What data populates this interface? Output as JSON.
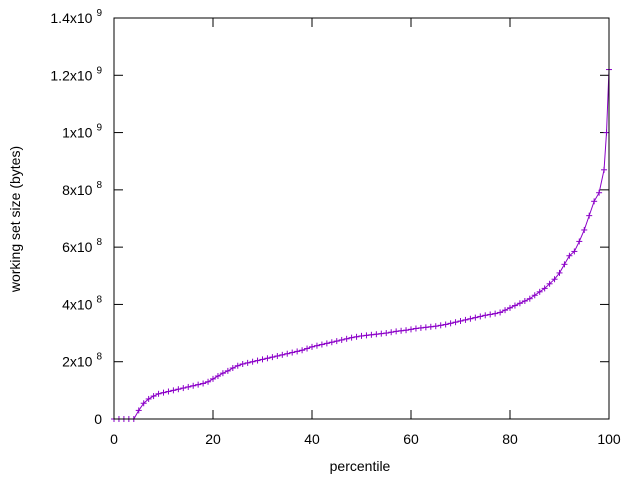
{
  "chart_data": {
    "type": "line",
    "title": "",
    "xlabel": "percentile",
    "ylabel": "working set size (bytes)",
    "xlim": [
      0,
      100
    ],
    "ylim": [
      0,
      1400000000
    ],
    "x_ticks": [
      {
        "value": 0,
        "label": "0"
      },
      {
        "value": 20,
        "label": "20"
      },
      {
        "value": 40,
        "label": "40"
      },
      {
        "value": 60,
        "label": "60"
      },
      {
        "value": 80,
        "label": "80"
      },
      {
        "value": 100,
        "label": "100"
      }
    ],
    "y_ticks": [
      {
        "value": 0,
        "base": "0",
        "exp": ""
      },
      {
        "value": 200000000,
        "base": "2x10",
        "exp": "8"
      },
      {
        "value": 400000000,
        "base": "4x10",
        "exp": "8"
      },
      {
        "value": 600000000,
        "base": "6x10",
        "exp": "8"
      },
      {
        "value": 800000000,
        "base": "8x10",
        "exp": "8"
      },
      {
        "value": 1000000000,
        "base": "1x10",
        "exp": "9"
      },
      {
        "value": 1200000000,
        "base": "1.2x10",
        "exp": "9"
      },
      {
        "value": 1400000000,
        "base": "1.4x10",
        "exp": "9"
      }
    ],
    "grid": false,
    "legend": "none",
    "color": "#8b00c8",
    "series": [
      {
        "marker": "plus",
        "points": [
          [
            0,
            0
          ],
          [
            1,
            0
          ],
          [
            2,
            0
          ],
          [
            3,
            0
          ],
          [
            4,
            0
          ],
          [
            5,
            30000000
          ],
          [
            6,
            55000000
          ],
          [
            7,
            70000000
          ],
          [
            8,
            80000000
          ],
          [
            9,
            88000000
          ],
          [
            10,
            92000000
          ],
          [
            11,
            96000000
          ],
          [
            12,
            100000000
          ],
          [
            13,
            104000000
          ],
          [
            14,
            108000000
          ],
          [
            15,
            112000000
          ],
          [
            16,
            116000000
          ],
          [
            17,
            120000000
          ],
          [
            18,
            124000000
          ],
          [
            19,
            130000000
          ],
          [
            20,
            140000000
          ],
          [
            21,
            150000000
          ],
          [
            22,
            160000000
          ],
          [
            23,
            168000000
          ],
          [
            24,
            178000000
          ],
          [
            25,
            186000000
          ],
          [
            26,
            192000000
          ],
          [
            27,
            196000000
          ],
          [
            28,
            200000000
          ],
          [
            29,
            204000000
          ],
          [
            30,
            208000000
          ],
          [
            31,
            212000000
          ],
          [
            32,
            216000000
          ],
          [
            33,
            220000000
          ],
          [
            34,
            224000000
          ],
          [
            35,
            228000000
          ],
          [
            36,
            232000000
          ],
          [
            37,
            236000000
          ],
          [
            38,
            240000000
          ],
          [
            39,
            246000000
          ],
          [
            40,
            252000000
          ],
          [
            41,
            256000000
          ],
          [
            42,
            260000000
          ],
          [
            43,
            264000000
          ],
          [
            44,
            268000000
          ],
          [
            45,
            272000000
          ],
          [
            46,
            276000000
          ],
          [
            47,
            280000000
          ],
          [
            48,
            284000000
          ],
          [
            49,
            287000000
          ],
          [
            50,
            290000000
          ],
          [
            51,
            292000000
          ],
          [
            52,
            294000000
          ],
          [
            53,
            296000000
          ],
          [
            54,
            298000000
          ],
          [
            55,
            300000000
          ],
          [
            56,
            303000000
          ],
          [
            57,
            306000000
          ],
          [
            58,
            308000000
          ],
          [
            59,
            310000000
          ],
          [
            60,
            313000000
          ],
          [
            61,
            316000000
          ],
          [
            62,
            318000000
          ],
          [
            63,
            320000000
          ],
          [
            64,
            322000000
          ],
          [
            65,
            324000000
          ],
          [
            66,
            327000000
          ],
          [
            67,
            330000000
          ],
          [
            68,
            334000000
          ],
          [
            69,
            338000000
          ],
          [
            70,
            342000000
          ],
          [
            71,
            346000000
          ],
          [
            72,
            350000000
          ],
          [
            73,
            354000000
          ],
          [
            74,
            358000000
          ],
          [
            75,
            362000000
          ],
          [
            76,
            365000000
          ],
          [
            77,
            368000000
          ],
          [
            78,
            372000000
          ],
          [
            79,
            380000000
          ],
          [
            80,
            388000000
          ],
          [
            81,
            396000000
          ],
          [
            82,
            404000000
          ],
          [
            83,
            412000000
          ],
          [
            84,
            420000000
          ],
          [
            85,
            432000000
          ],
          [
            86,
            444000000
          ],
          [
            87,
            456000000
          ],
          [
            88,
            472000000
          ],
          [
            89,
            488000000
          ],
          [
            90,
            510000000
          ],
          [
            91,
            540000000
          ],
          [
            92,
            570000000
          ],
          [
            93,
            585000000
          ],
          [
            94,
            620000000
          ],
          [
            95,
            660000000
          ],
          [
            96,
            710000000
          ],
          [
            97,
            760000000
          ],
          [
            98,
            790000000
          ],
          [
            99,
            870000000
          ],
          [
            99.5,
            1000000000
          ],
          [
            100,
            1220000000
          ]
        ]
      }
    ]
  }
}
